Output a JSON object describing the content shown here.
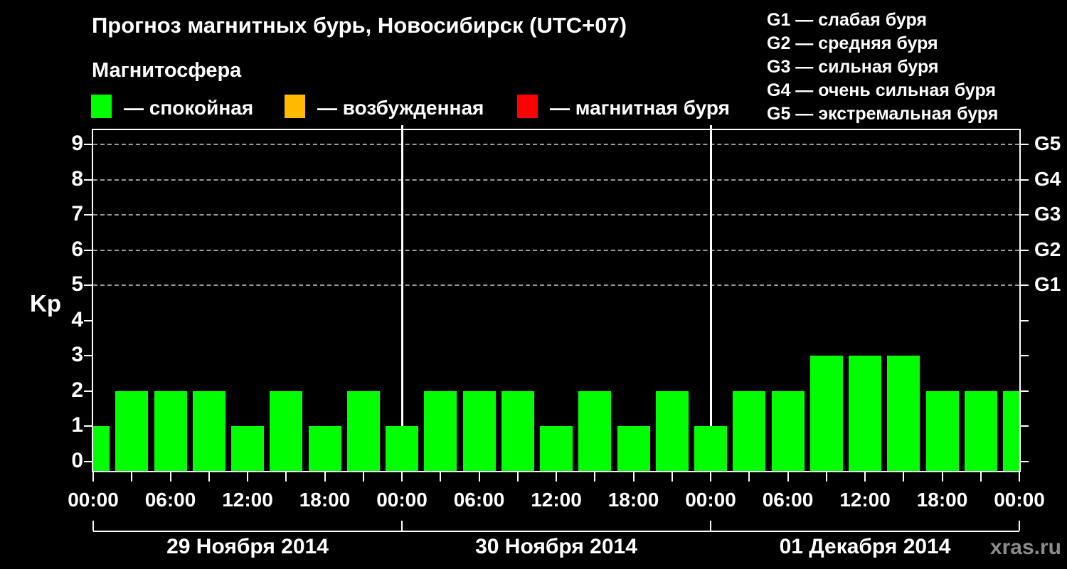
{
  "header": {
    "title": "Прогноз магнитных бурь, Новосибирск (UTC+07)",
    "subtitle": "Магнитосфера"
  },
  "legend": {
    "items": [
      {
        "name": "quiet",
        "label": "— спокойная",
        "color": "#00ff00"
      },
      {
        "name": "excited",
        "label": "— возбужденная",
        "color": "#ffbb00"
      },
      {
        "name": "storm",
        "label": "— магнитная буря",
        "color": "#ff0000"
      }
    ]
  },
  "storm_scale": [
    "G1 — слабая буря",
    "G2 — средняя буря",
    "G3 — сильная буря",
    "G4 — очень сильная буря",
    "G5 — экстремальная буря"
  ],
  "watermark": "xras.ru",
  "chart_data": {
    "type": "bar",
    "title": "Прогноз магнитных бурь, Новосибирск (UTC+07)",
    "ylabel": "Kp",
    "ylim": [
      0,
      9.4
    ],
    "yticks": [
      0,
      1,
      2,
      3,
      4,
      5,
      6,
      7,
      8,
      9
    ],
    "gridlines": {
      "values": [
        5,
        6,
        7,
        8,
        9
      ],
      "style": "dashed",
      "color": "#9a9a9a"
    },
    "right_axis": [
      {
        "value": 5,
        "label": "G1"
      },
      {
        "value": 6,
        "label": "G2"
      },
      {
        "value": 7,
        "label": "G3"
      },
      {
        "value": 8,
        "label": "G4"
      },
      {
        "value": 9,
        "label": "G5"
      }
    ],
    "x_unit": "hours",
    "x_range_hours": [
      0,
      72
    ],
    "bar_interval_hours": 3,
    "minor_tick_every_hours": 3,
    "label_every_hours": 6,
    "x_major_labels": [
      "00:00",
      "06:00",
      "12:00",
      "18:00",
      "00:00",
      "06:00",
      "12:00",
      "18:00",
      "00:00",
      "06:00",
      "12:00",
      "18:00",
      "00:00"
    ],
    "hours": [
      0,
      3,
      6,
      9,
      12,
      15,
      18,
      21,
      24,
      27,
      30,
      33,
      36,
      39,
      42,
      45,
      48,
      51,
      54,
      57,
      60,
      63,
      66,
      69,
      72
    ],
    "values": [
      1,
      2,
      2,
      2,
      1,
      2,
      1,
      2,
      1,
      2,
      2,
      2,
      1,
      2,
      1,
      2,
      1,
      2,
      2,
      3,
      3,
      3,
      2,
      2,
      2
    ],
    "bar_color": "#00ff00",
    "day_separator_hours": [
      24,
      48
    ],
    "days": [
      {
        "label": "29 Ноября 2014",
        "start_hour": 0,
        "end_hour": 24
      },
      {
        "label": "30 Ноября 2014",
        "start_hour": 24,
        "end_hour": 48
      },
      {
        "label": "01 Декабря 2014",
        "start_hour": 48,
        "end_hour": 72
      }
    ]
  }
}
